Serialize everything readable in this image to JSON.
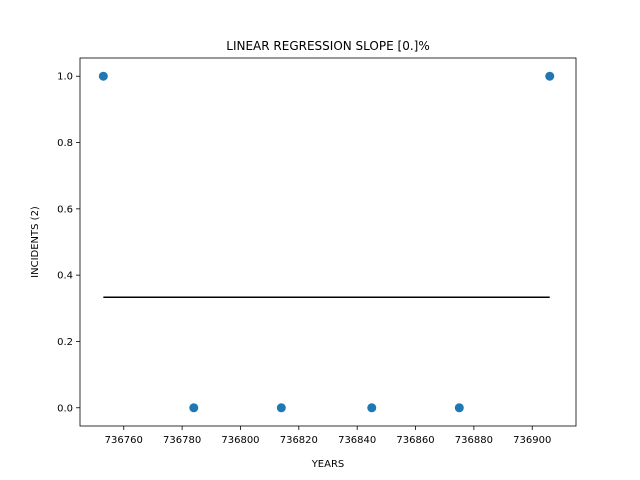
{
  "chart_data": {
    "type": "scatter",
    "title": "LINEAR REGRESSION SLOPE [0.]%",
    "xlabel": "YEARS",
    "ylabel": "INCIDENTS (2)",
    "xlim": [
      736745,
      736915
    ],
    "ylim": [
      -0.055,
      1.055
    ],
    "xticks": [
      736760,
      736780,
      736800,
      736820,
      736840,
      736860,
      736880,
      736900
    ],
    "yticks": [
      0.0,
      0.2,
      0.4,
      0.6,
      0.8,
      1.0
    ],
    "ytick_labels": [
      "0.0",
      "0.2",
      "0.4",
      "0.6",
      "0.8",
      "1.0"
    ],
    "grid": false,
    "series": [
      {
        "type": "scatter",
        "color": "#1f77b4",
        "x": [
          736753,
          736784,
          736814,
          736845,
          736875,
          736906
        ],
        "y": [
          1,
          0,
          0,
          0,
          0,
          1
        ]
      },
      {
        "type": "line",
        "color": "#000000",
        "x": [
          736753,
          736906
        ],
        "y": [
          0.3333,
          0.3333
        ]
      }
    ]
  }
}
